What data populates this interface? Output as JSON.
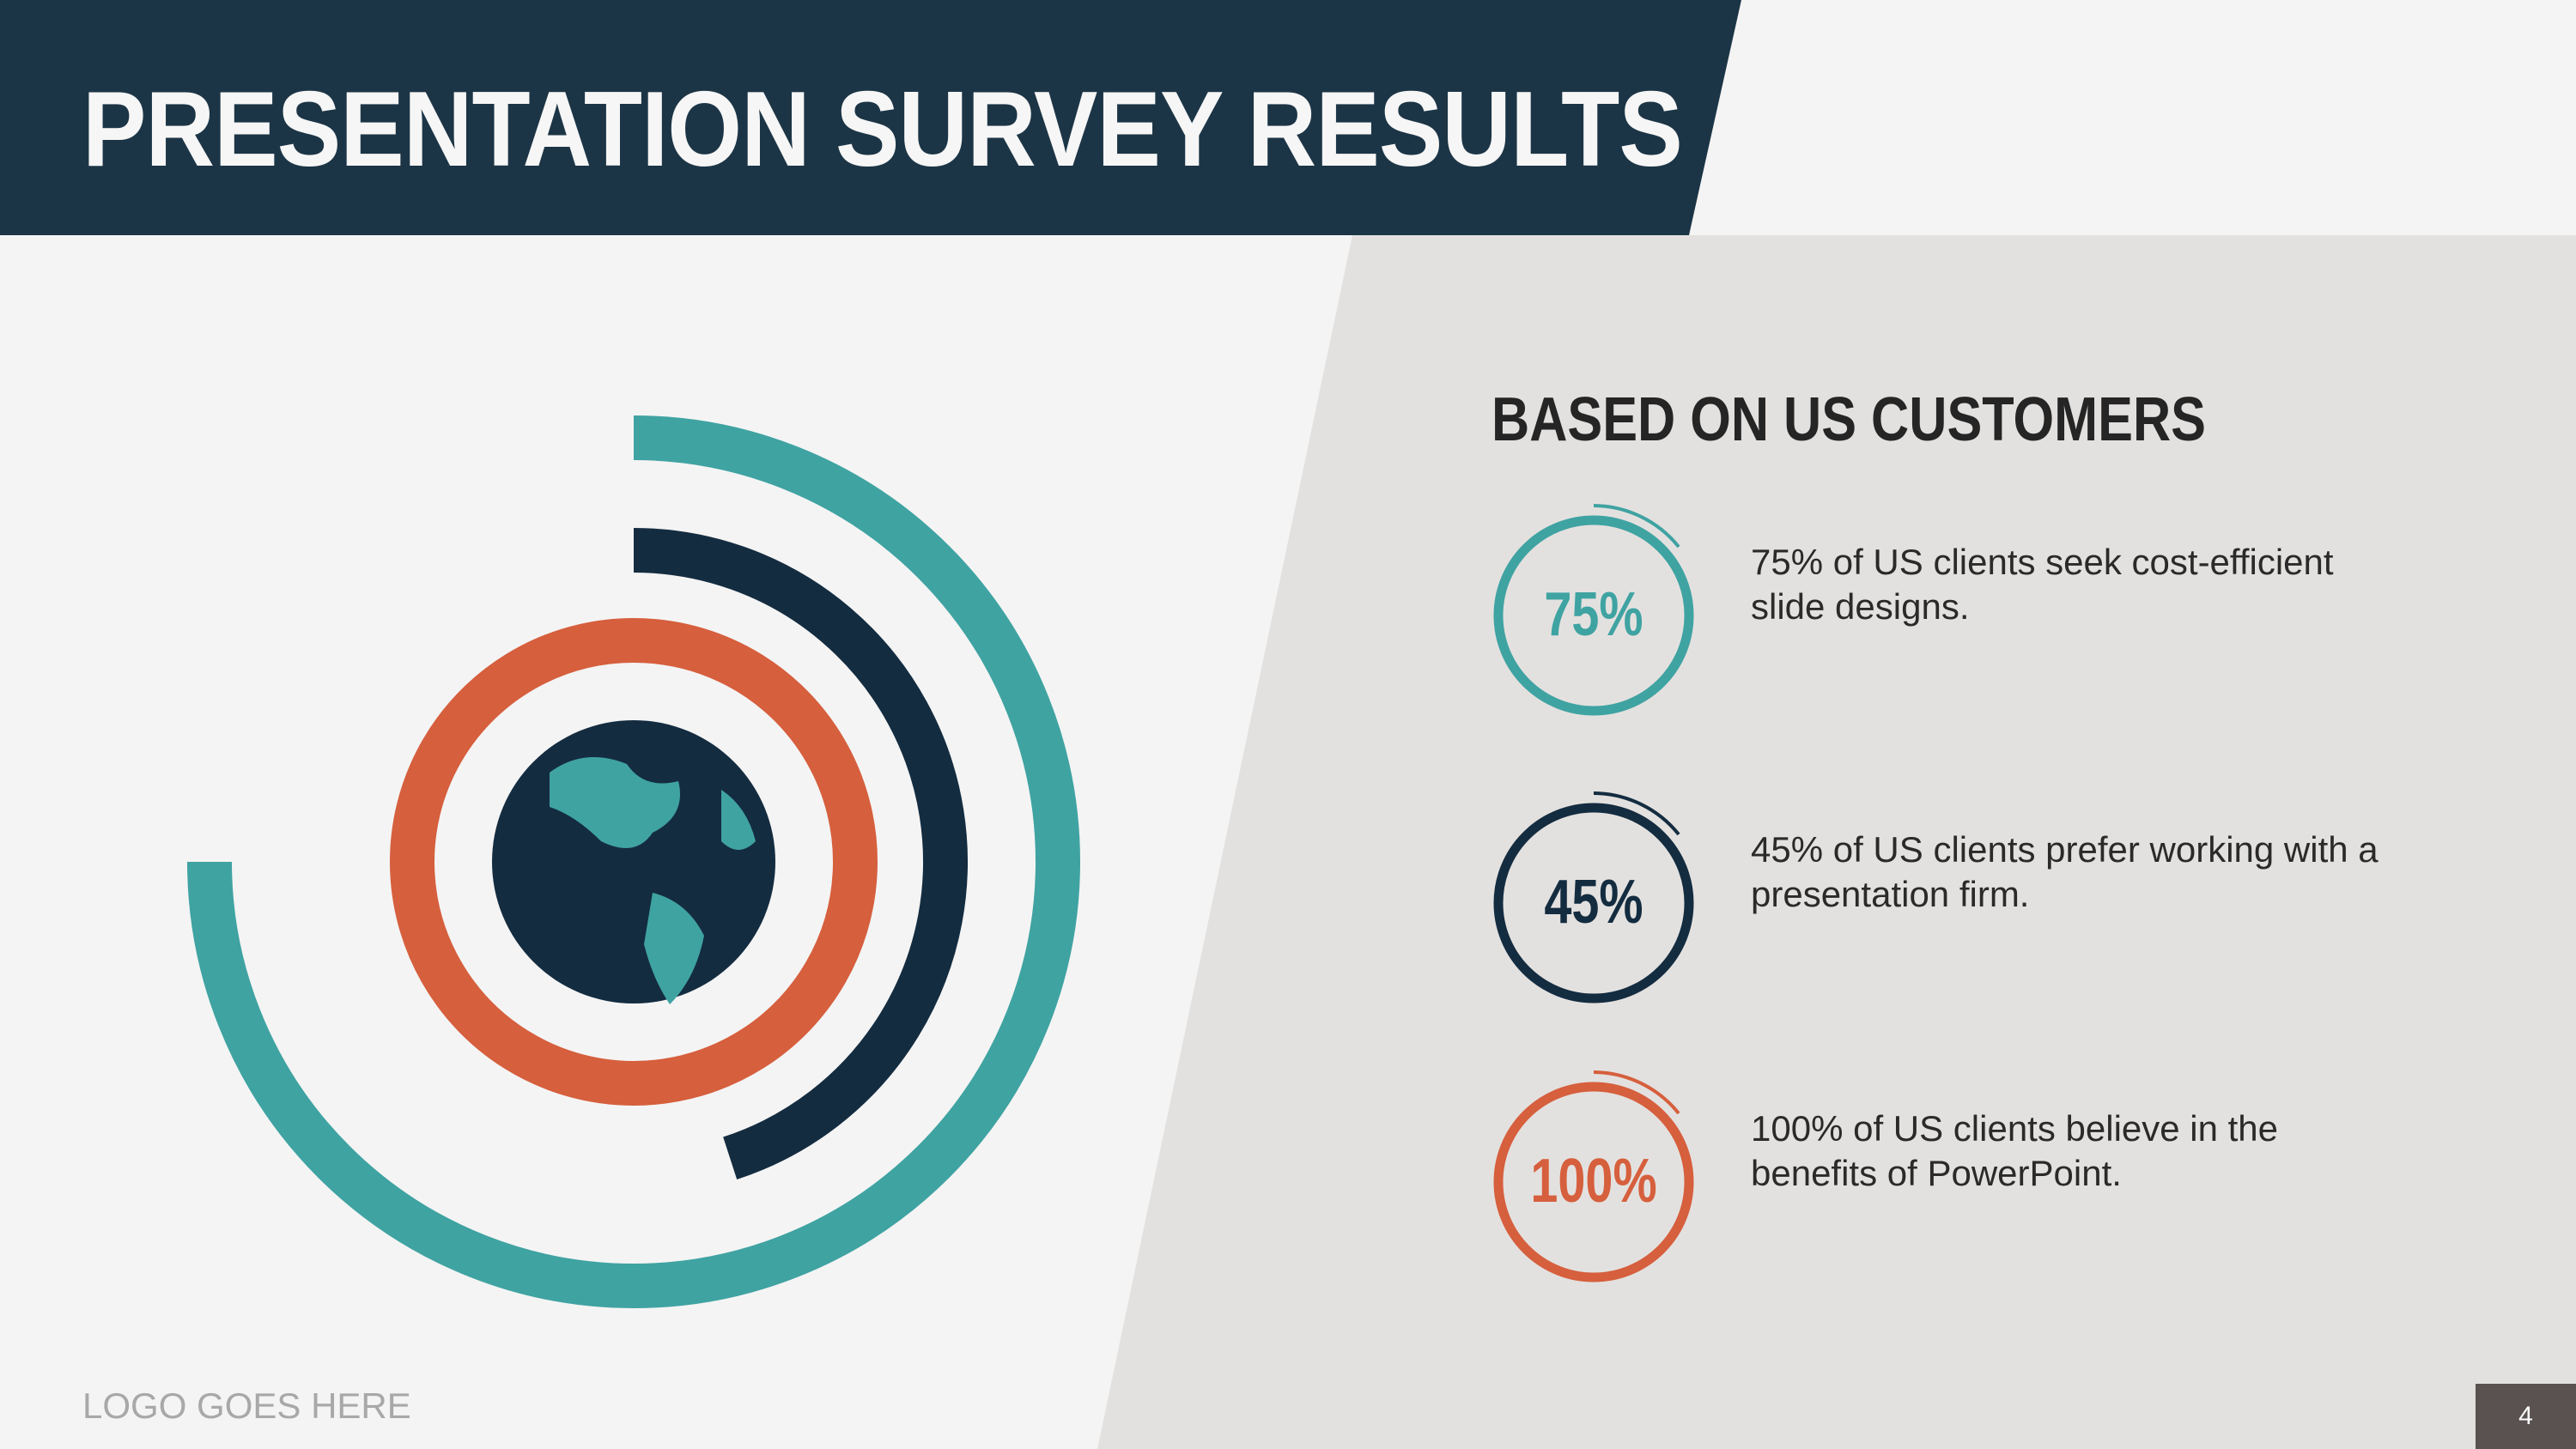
{
  "title": "PRESENTATION SURVEY RESULTS",
  "subtitle": "BASED ON US CUSTOMERS",
  "items": [
    {
      "value": 75,
      "label": "75%",
      "text": "75% of US clients seek cost-efficient slide designs.",
      "color": "#3fa3a2"
    },
    {
      "value": 45,
      "label": "45%",
      "text": "45% of US clients prefer working with a presentation firm.",
      "color": "#142c40"
    },
    {
      "value": 100,
      "label": "100%",
      "text": "100% of US clients believe in the benefits of PowerPoint.",
      "color": "#d65f3d"
    }
  ],
  "logo": "LOGO GOES HERE",
  "page_number": "4"
}
